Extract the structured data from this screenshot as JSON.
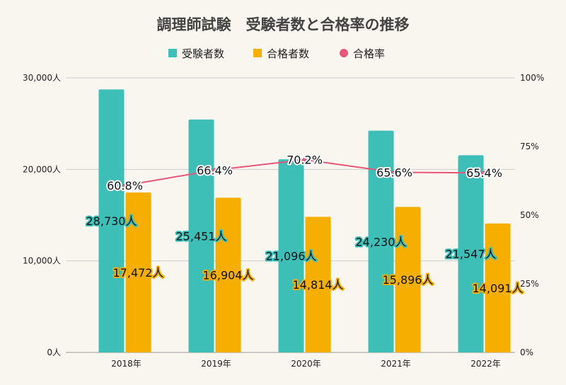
{
  "chart_data": {
    "type": "bar",
    "title": "調理師試験　受験者数と合格率の推移",
    "categories": [
      "2018年",
      "2019年",
      "2020年",
      "2021年",
      "2022年"
    ],
    "series": [
      {
        "name": "受験者数",
        "type": "bar",
        "axis": "left",
        "color": "#3dbfb8",
        "values": [
          28730,
          25451,
          21096,
          24230,
          21547
        ],
        "labels": [
          "28,730人",
          "25,451人",
          "21,096人",
          "24,230人",
          "21,547人"
        ]
      },
      {
        "name": "合格者数",
        "type": "bar",
        "axis": "left",
        "color": "#f6ae00",
        "values": [
          17472,
          16904,
          14814,
          15896,
          14091
        ],
        "labels": [
          "17,472人",
          "16,904人",
          "14,814人",
          "15,896人",
          "14,091人"
        ]
      },
      {
        "name": "合格率",
        "type": "line",
        "axis": "right",
        "color": "#e8567a",
        "values": [
          60.8,
          66.4,
          70.2,
          65.6,
          65.4
        ],
        "labels": [
          "60.8%",
          "66.4%",
          "70.2%",
          "65.6%",
          "65.4%"
        ]
      }
    ],
    "left_axis": {
      "ylim": [
        0,
        30000
      ],
      "ticks": [
        "0人",
        "10,000人",
        "20,000人",
        "30,000人"
      ]
    },
    "right_axis": {
      "ylim": [
        0,
        100
      ],
      "ticks": [
        "0%",
        "25%",
        "50%",
        "75%",
        "100%"
      ]
    },
    "grid": true,
    "legend": "top"
  }
}
